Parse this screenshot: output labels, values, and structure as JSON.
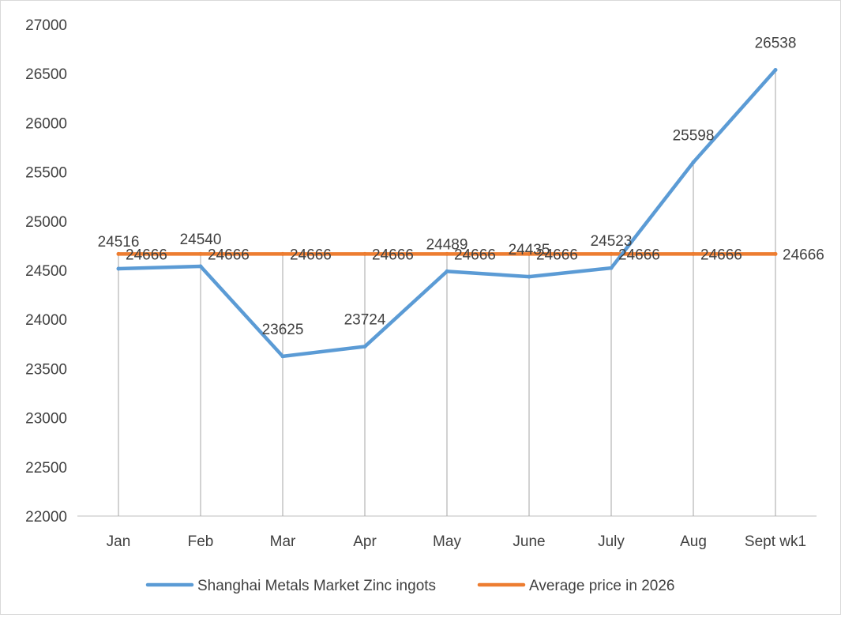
{
  "chart_data": {
    "type": "line",
    "title": "",
    "xlabel": "",
    "ylabel": "",
    "categories": [
      "Jan",
      "Feb",
      "Mar",
      "Apr",
      "May",
      "June",
      "July",
      "Aug",
      "Sept wk1"
    ],
    "ylim": [
      22000,
      27000
    ],
    "yticks": [
      22000,
      22500,
      23000,
      23500,
      24000,
      24500,
      25000,
      25500,
      26000,
      26500,
      27000
    ],
    "grid": "vertical drop lines at each category",
    "legend_position": "bottom",
    "series": [
      {
        "name": "Shanghai Metals Market Zinc ingots",
        "color": "#5b9bd5",
        "values": [
          24516,
          24540,
          23625,
          23724,
          24489,
          24435,
          24523,
          25598,
          26538
        ]
      },
      {
        "name": "Average price in 2026",
        "color": "#ed7d31",
        "values": [
          24666,
          24666,
          24666,
          24666,
          24666,
          24666,
          24666,
          24666,
          24666
        ]
      }
    ]
  }
}
